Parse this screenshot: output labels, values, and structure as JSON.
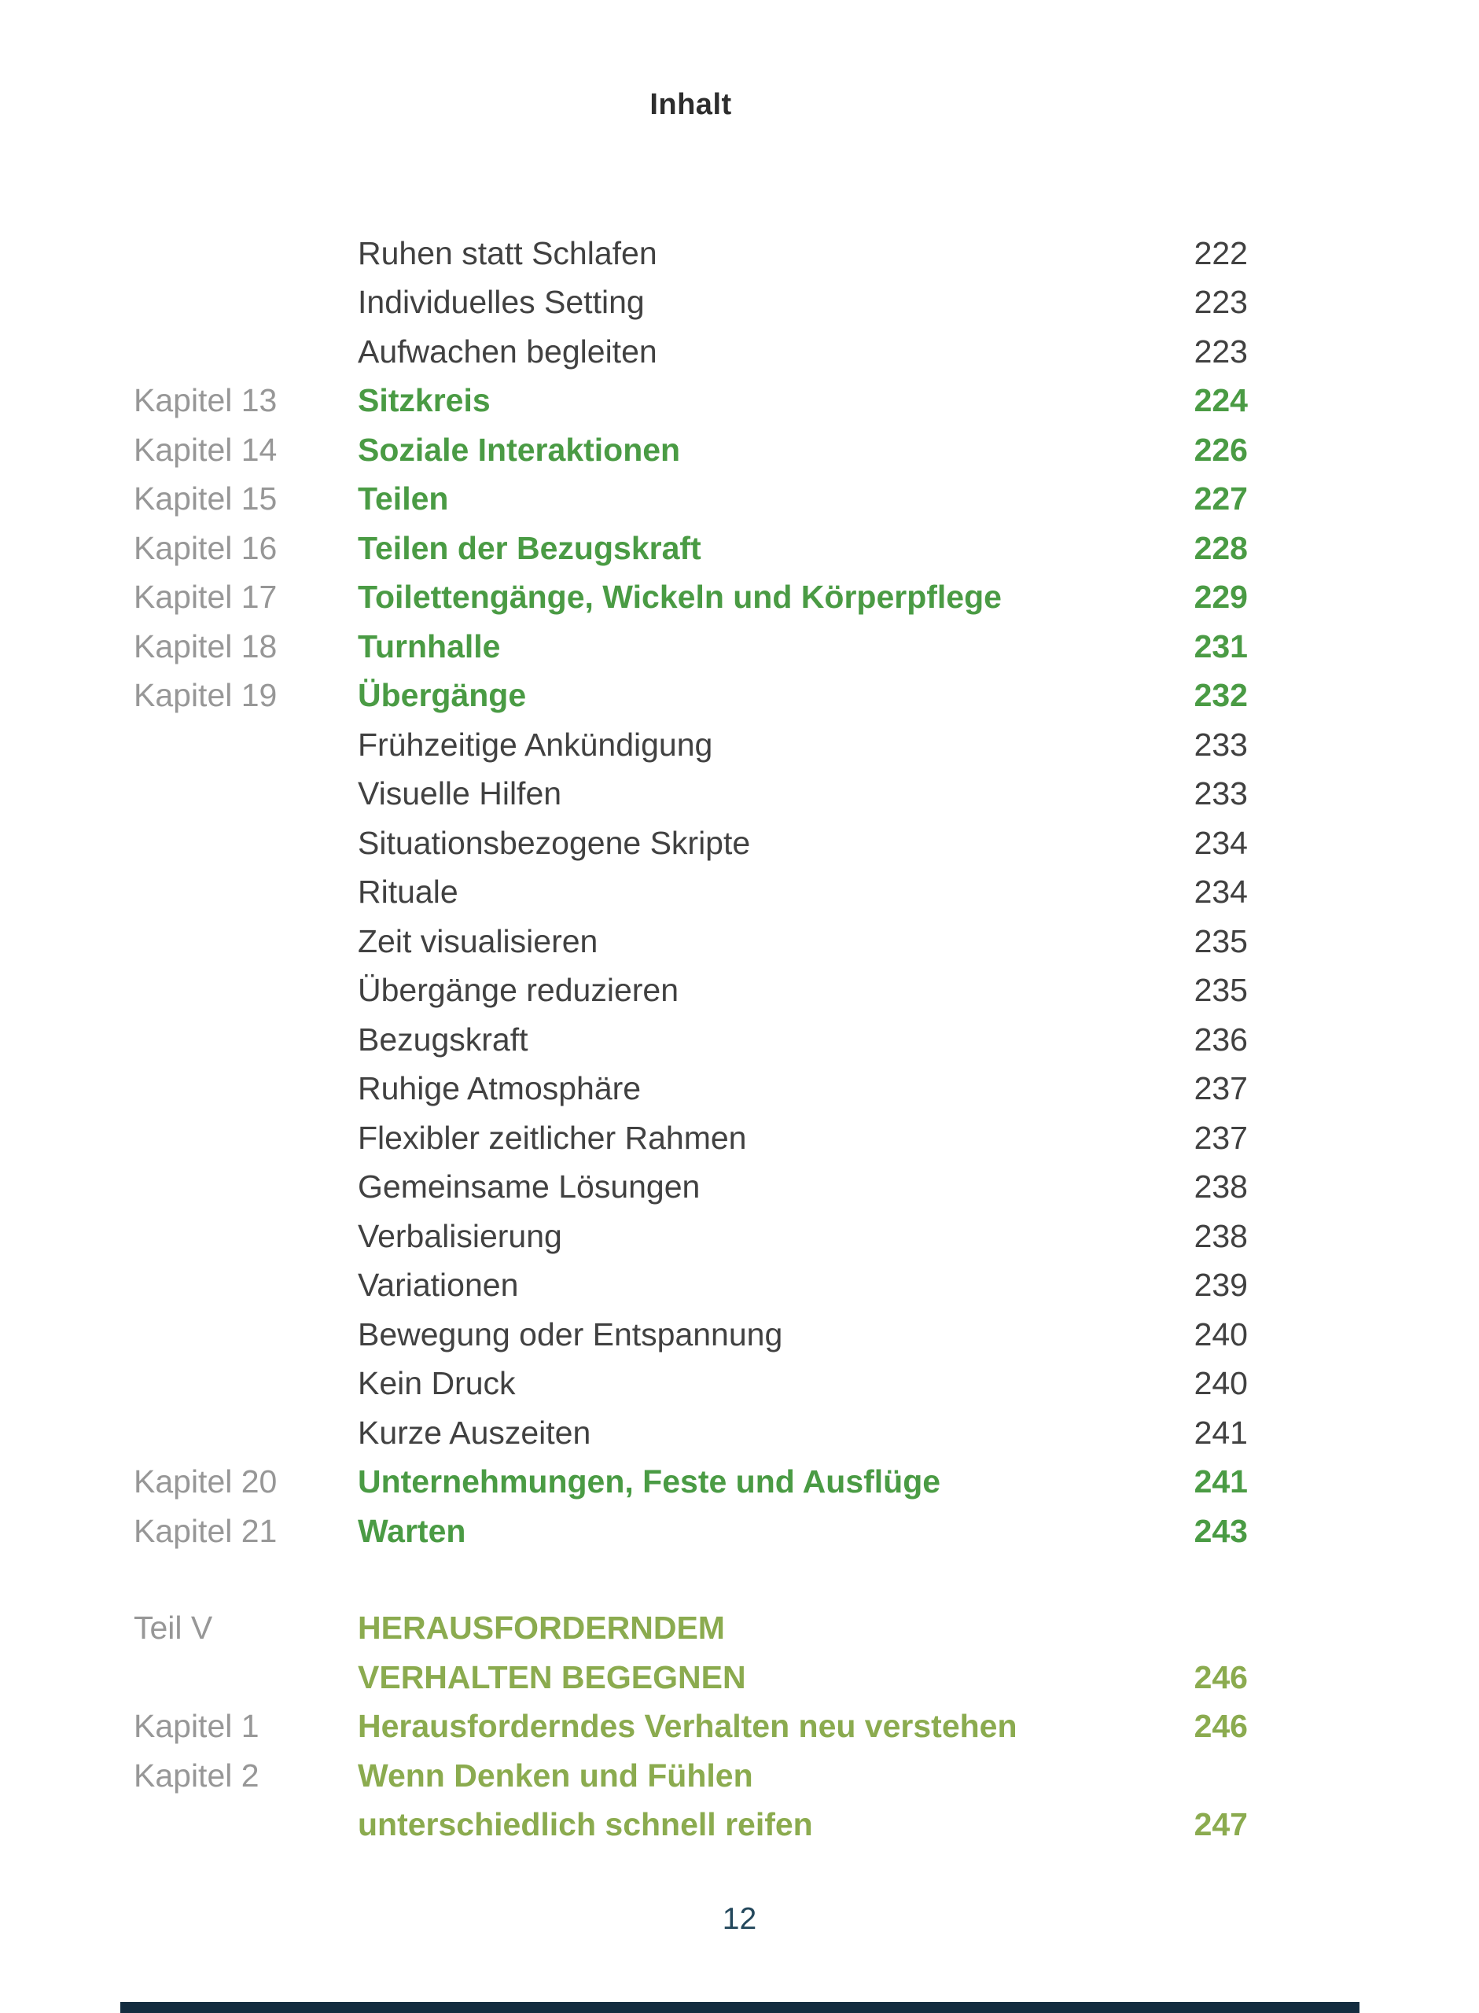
{
  "header": {
    "title": "Inhalt"
  },
  "colors": {
    "text": "#414141",
    "label": "#979797",
    "chapter_green": "#4a9b44",
    "part_olive": "#8bab4f",
    "footer_navy": "#24485c",
    "bottom_bar_navy": "#132c3f"
  },
  "toc": {
    "entries": [
      {
        "label": "",
        "title": "Ruhen statt Schlafen",
        "page": "222",
        "style": "sub",
        "gap_before": false
      },
      {
        "label": "",
        "title": "Individuelles Setting",
        "page": "223",
        "style": "sub",
        "gap_before": false
      },
      {
        "label": "",
        "title": "Aufwachen begleiten",
        "page": "223",
        "style": "sub",
        "gap_before": false
      },
      {
        "label": "Kapitel 13",
        "title": "Sitzkreis",
        "page": "224",
        "style": "chapter",
        "gap_before": false
      },
      {
        "label": "Kapitel 14",
        "title": "Soziale Interaktionen",
        "page": "226",
        "style": "chapter",
        "gap_before": false
      },
      {
        "label": "Kapitel 15",
        "title": "Teilen",
        "page": "227",
        "style": "chapter",
        "gap_before": false
      },
      {
        "label": "Kapitel 16",
        "title": "Teilen der Bezugskraft",
        "page": "228",
        "style": "chapter",
        "gap_before": false
      },
      {
        "label": "Kapitel 17",
        "title": "Toilettengänge, Wickeln und Körperpflege",
        "page": "229",
        "style": "chapter",
        "gap_before": false
      },
      {
        "label": "Kapitel 18",
        "title": "Turnhalle",
        "page": "231",
        "style": "chapter",
        "gap_before": false
      },
      {
        "label": "Kapitel 19",
        "title": "Übergänge",
        "page": "232",
        "style": "chapter",
        "gap_before": false
      },
      {
        "label": "",
        "title": "Frühzeitige Ankündigung",
        "page": "233",
        "style": "sub",
        "gap_before": false
      },
      {
        "label": "",
        "title": "Visuelle Hilfen",
        "page": "233",
        "style": "sub",
        "gap_before": false
      },
      {
        "label": "",
        "title": "Situationsbezogene Skripte",
        "page": "234",
        "style": "sub",
        "gap_before": false
      },
      {
        "label": "",
        "title": "Rituale",
        "page": "234",
        "style": "sub",
        "gap_before": false
      },
      {
        "label": "",
        "title": "Zeit visualisieren",
        "page": "235",
        "style": "sub",
        "gap_before": false
      },
      {
        "label": "",
        "title": "Übergänge reduzieren",
        "page": "235",
        "style": "sub",
        "gap_before": false
      },
      {
        "label": "",
        "title": "Bezugskraft",
        "page": "236",
        "style": "sub",
        "gap_before": false
      },
      {
        "label": "",
        "title": "Ruhige Atmosphäre",
        "page": "237",
        "style": "sub",
        "gap_before": false
      },
      {
        "label": "",
        "title": "Flexibler zeitlicher Rahmen",
        "page": "237",
        "style": "sub",
        "gap_before": false
      },
      {
        "label": "",
        "title": "Gemeinsame Lösungen",
        "page": "238",
        "style": "sub",
        "gap_before": false
      },
      {
        "label": "",
        "title": "Verbalisierung",
        "page": "238",
        "style": "sub",
        "gap_before": false
      },
      {
        "label": "",
        "title": "Variationen",
        "page": "239",
        "style": "sub",
        "gap_before": false
      },
      {
        "label": "",
        "title": "Bewegung oder Entspannung",
        "page": "240",
        "style": "sub",
        "gap_before": false
      },
      {
        "label": "",
        "title": "Kein Druck",
        "page": "240",
        "style": "sub",
        "gap_before": false
      },
      {
        "label": "",
        "title": "Kurze Auszeiten",
        "page": "241",
        "style": "sub",
        "gap_before": false
      },
      {
        "label": "Kapitel 20",
        "title": "Unternehmungen, Feste und Ausflüge",
        "page": "241",
        "style": "chapter",
        "gap_before": false
      },
      {
        "label": "Kapitel 21",
        "title": "Warten",
        "page": "243",
        "style": "chapter",
        "gap_before": false
      },
      {
        "label": "Teil V",
        "title": "HERAUSFORDERNDEM",
        "page": "",
        "style": "part",
        "gap_before": true
      },
      {
        "label": "",
        "title": "VERHALTEN BEGEGNEN",
        "page": "246",
        "style": "part",
        "gap_before": false
      },
      {
        "label": "Kapitel 1",
        "title": "Herausforderndes Verhalten neu verstehen",
        "page": "246",
        "style": "part",
        "gap_before": false
      },
      {
        "label": "Kapitel 2",
        "title": "Wenn Denken und Fühlen",
        "page": "",
        "style": "part",
        "gap_before": false
      },
      {
        "label": "",
        "title": "unterschiedlich schnell reifen",
        "page": "247",
        "style": "part",
        "gap_before": false
      }
    ]
  },
  "footer": {
    "page_number": "12"
  }
}
